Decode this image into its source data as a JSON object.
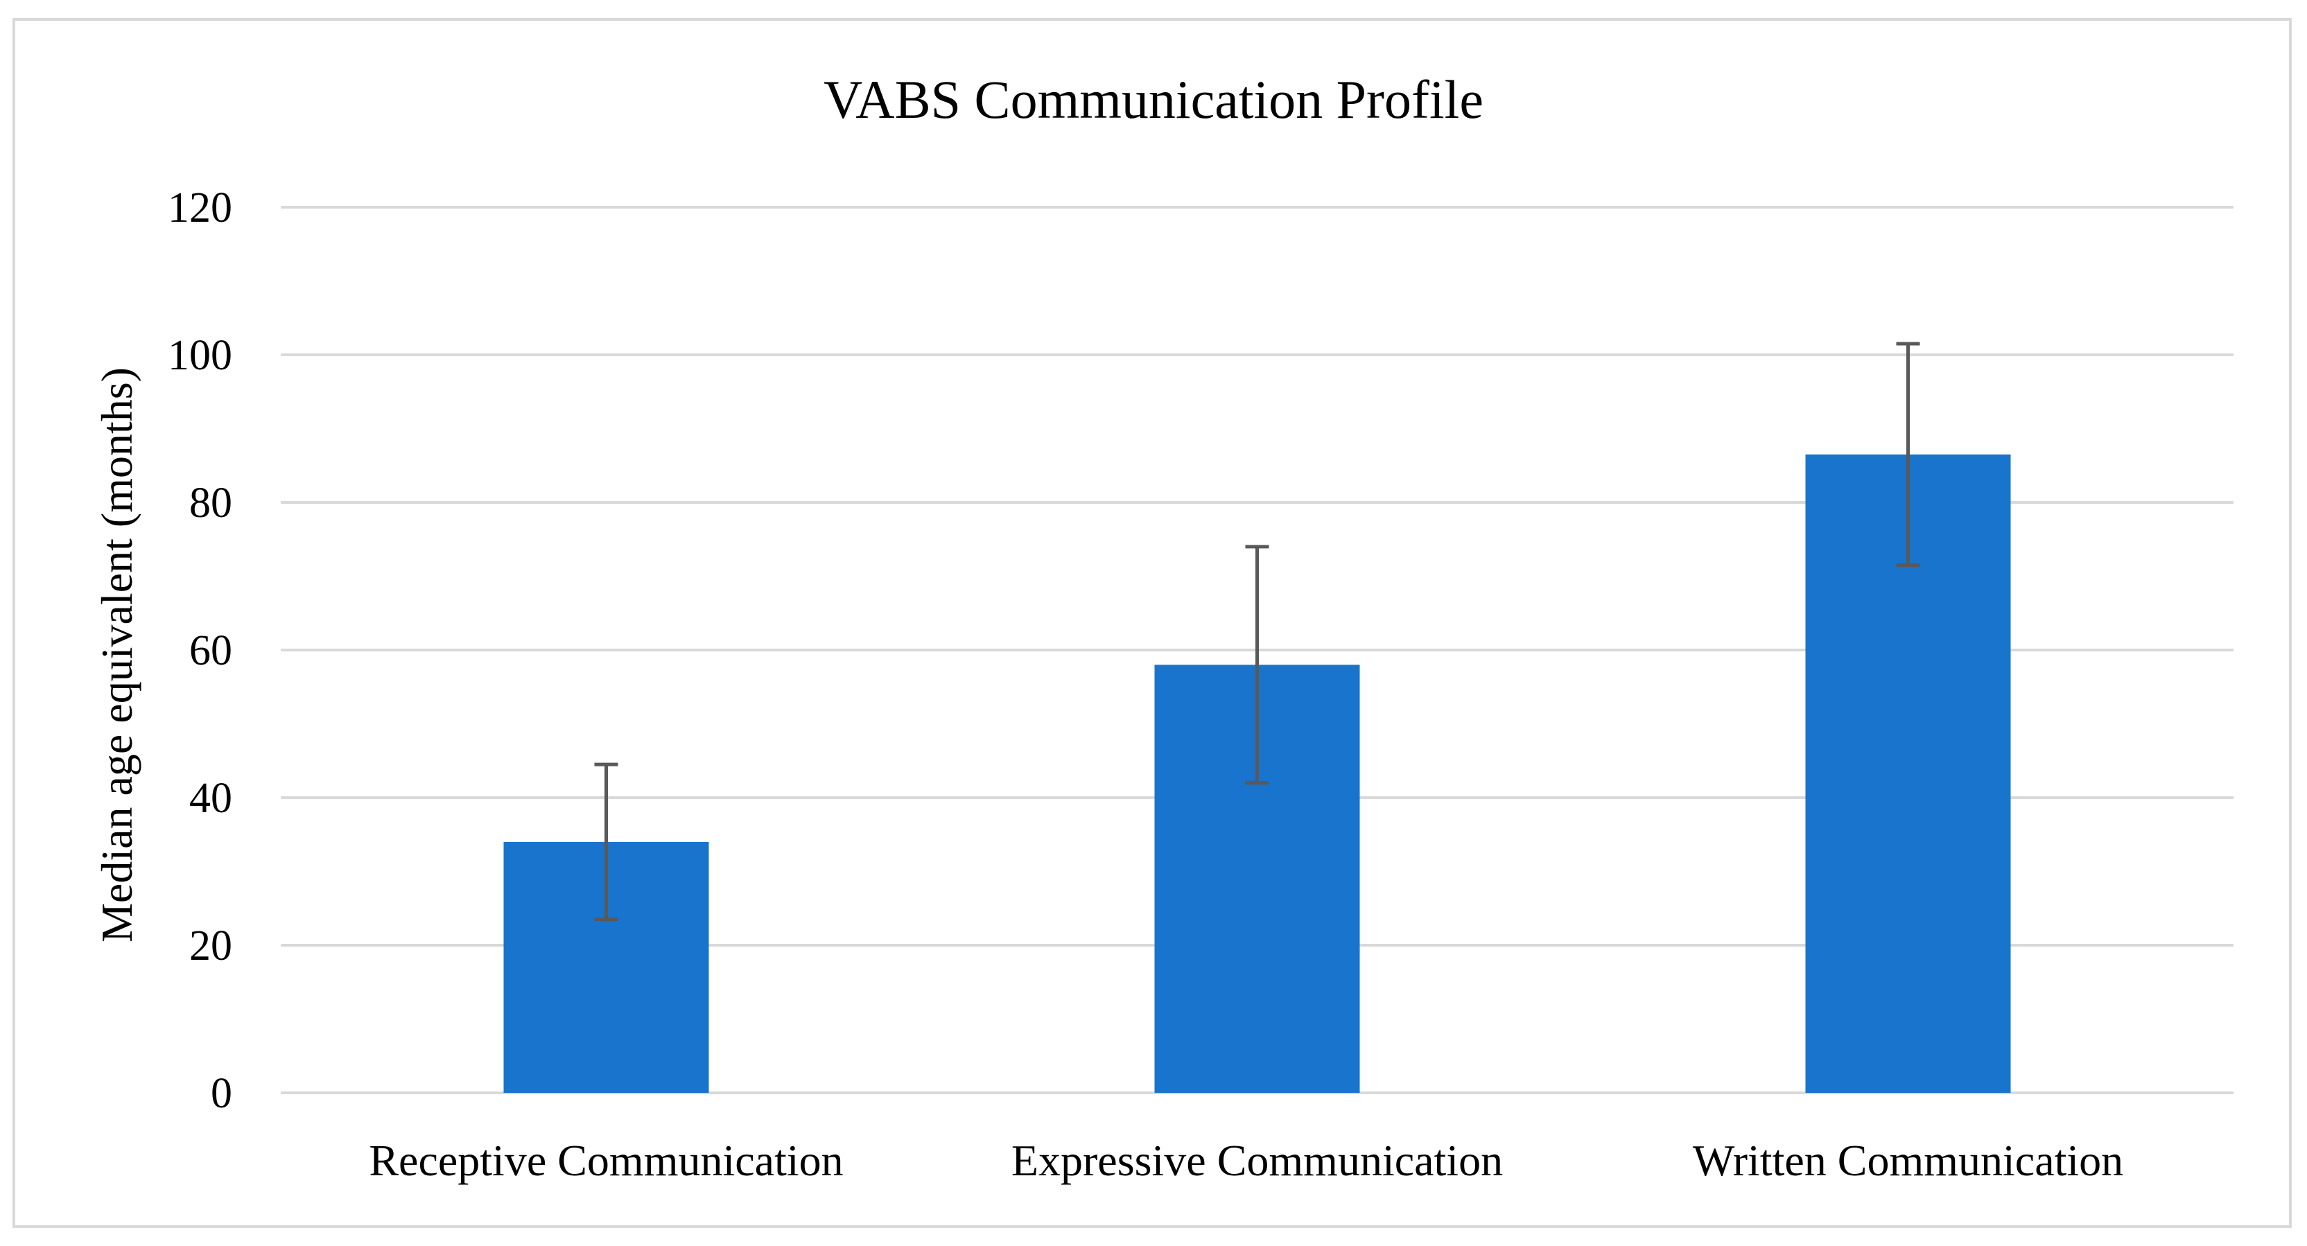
{
  "chart_data": {
    "type": "bar",
    "title": "VABS Communication Profile",
    "xlabel": "",
    "ylabel": "Median age equivalent (months)",
    "categories": [
      "Receptive Communication",
      "Expressive Communication",
      "Written Communication"
    ],
    "values": [
      34,
      58,
      86.5
    ],
    "error_low": [
      23.5,
      42,
      71.5
    ],
    "error_high": [
      44.5,
      74,
      101.5
    ],
    "ylim": [
      0,
      120
    ],
    "yticks": [
      0,
      20,
      40,
      60,
      80,
      100,
      120
    ],
    "grid": true,
    "legend": "none",
    "colors": {
      "bar": "#1874CD",
      "error_bar": "#595959",
      "grid": "#d9d9d9"
    }
  }
}
